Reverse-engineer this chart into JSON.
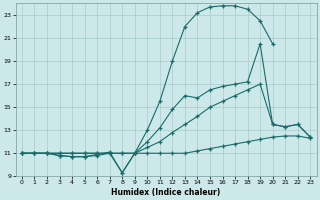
{
  "xlabel": "Humidex (Indice chaleur)",
  "background_color": "#cce8e8",
  "grid_color": "#aacccc",
  "line_color": "#1a6b6b",
  "xlim": [
    -0.5,
    23.5
  ],
  "ylim": [
    9,
    24
  ],
  "xticks": [
    0,
    1,
    2,
    3,
    4,
    5,
    6,
    7,
    8,
    9,
    10,
    11,
    12,
    13,
    14,
    15,
    16,
    17,
    18,
    19,
    20,
    21,
    22,
    23
  ],
  "yticks": [
    9,
    11,
    13,
    15,
    17,
    19,
    21,
    23
  ],
  "curve_flat_x": [
    0,
    1,
    2,
    3,
    4,
    5,
    6,
    7,
    8,
    9,
    10,
    11,
    12,
    13,
    14,
    15,
    16,
    17,
    18,
    19,
    20,
    21,
    22,
    23
  ],
  "curve_flat_y": [
    11,
    11,
    11,
    10.8,
    10.7,
    10.7,
    10.8,
    11.0,
    9.3,
    11,
    11,
    11,
    11,
    11,
    11.2,
    11.4,
    11.6,
    11.8,
    12.0,
    12.2,
    12.4,
    12.5,
    12.5,
    12.3
  ],
  "curve_diag_x": [
    0,
    1,
    2,
    3,
    4,
    5,
    6,
    7,
    8,
    9,
    10,
    11,
    12,
    13,
    14,
    15,
    16,
    17,
    18,
    19,
    20,
    21,
    22,
    23
  ],
  "curve_diag_y": [
    11,
    11,
    11,
    11,
    11,
    11,
    11,
    11,
    11,
    11,
    11.5,
    12,
    12.8,
    13.5,
    14.2,
    15.0,
    15.5,
    16.0,
    16.5,
    17.0,
    13.5,
    13.3,
    13.5,
    12.4
  ],
  "curve_mid_x": [
    0,
    1,
    2,
    3,
    4,
    5,
    6,
    7,
    8,
    9,
    10,
    11,
    12,
    13,
    14,
    15,
    16,
    17,
    18,
    19,
    20,
    21,
    22,
    23
  ],
  "curve_mid_y": [
    11,
    11,
    11,
    10.8,
    10.7,
    10.7,
    10.9,
    11.1,
    9.3,
    11,
    12,
    13.2,
    14.8,
    16.0,
    15.8,
    16.5,
    16.8,
    17.0,
    17.2,
    20.5,
    13.5,
    13.3,
    13.5,
    12.4
  ],
  "curve_top_x": [
    0,
    1,
    2,
    3,
    4,
    5,
    6,
    7,
    8,
    9,
    10,
    11,
    12,
    13,
    14,
    15,
    16,
    17,
    18,
    19,
    20
  ],
  "curve_top_y": [
    11,
    11,
    11,
    11,
    11,
    11,
    11,
    11,
    11,
    11,
    13,
    15.5,
    19,
    22,
    23.2,
    23.7,
    23.8,
    23.8,
    23.5,
    22.5,
    20.5
  ]
}
